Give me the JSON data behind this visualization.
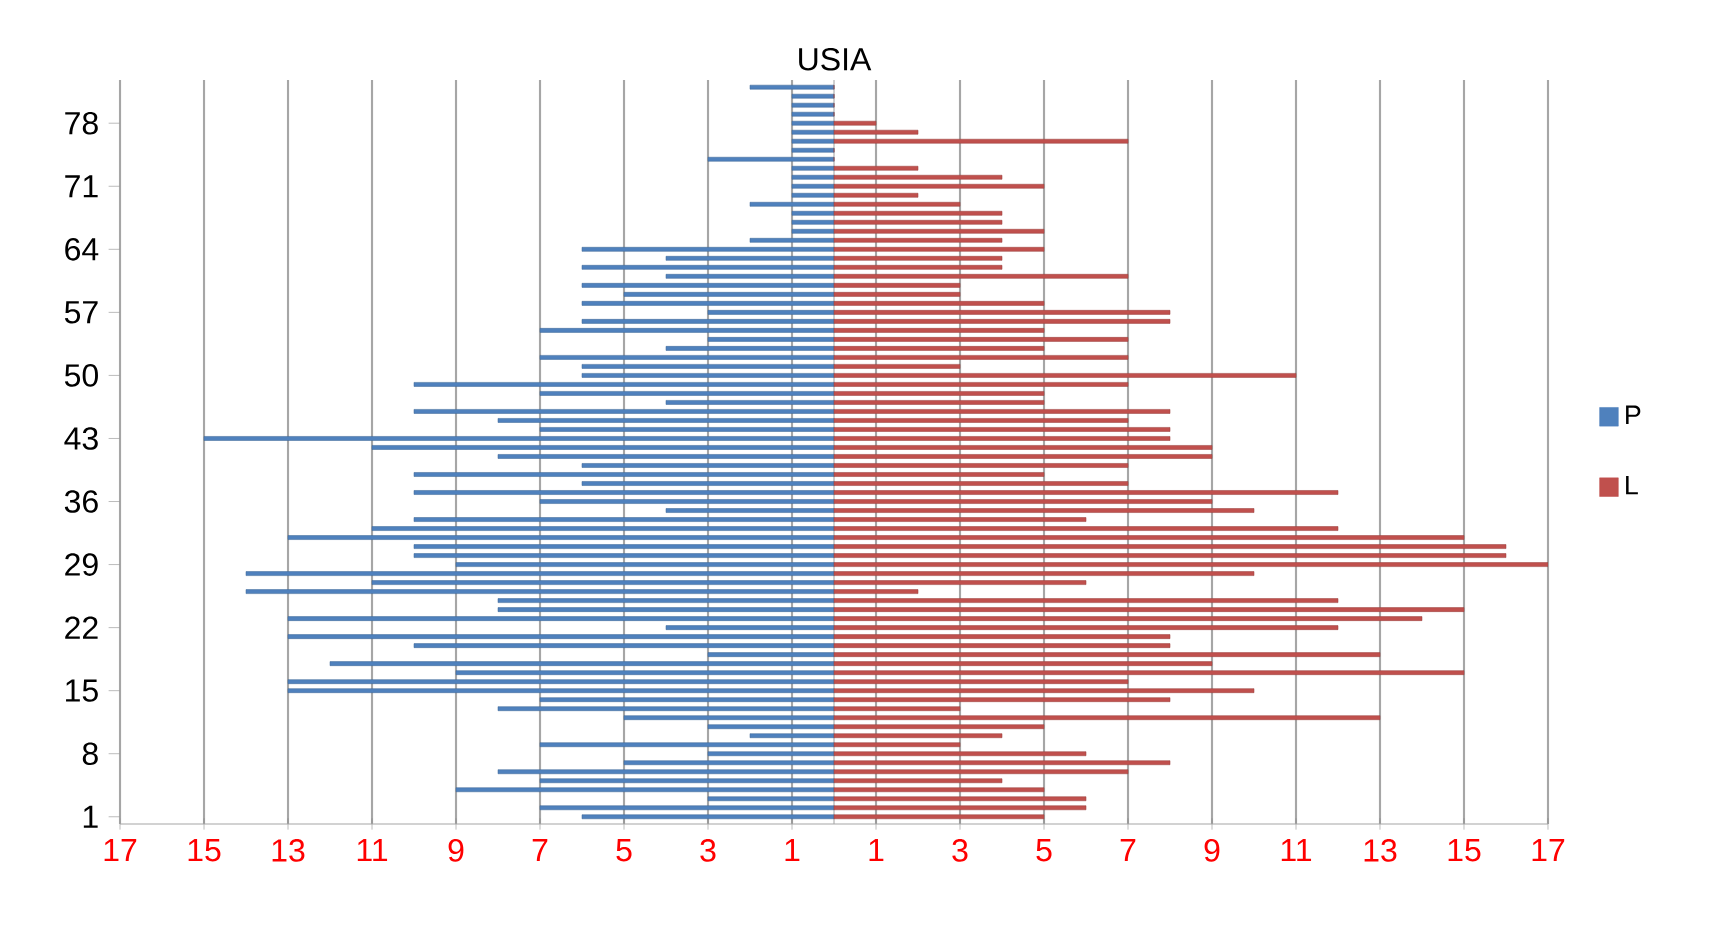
{
  "chart_data": {
    "type": "bar",
    "orientation": "horizontal",
    "stacked": true,
    "ylabel": "USIA",
    "categories": [
      null,
      null,
      null,
      null,
      "78",
      null,
      null,
      null,
      null,
      null,
      null,
      "71",
      null,
      null,
      null,
      null,
      null,
      null,
      "64",
      null,
      null,
      null,
      null,
      null,
      null,
      "57",
      null,
      null,
      null,
      null,
      null,
      null,
      "50",
      null,
      null,
      null,
      null,
      null,
      null,
      "43",
      null,
      null,
      null,
      null,
      null,
      null,
      "36",
      null,
      null,
      null,
      null,
      null,
      null,
      "29",
      null,
      null,
      null,
      null,
      null,
      null,
      "22",
      null,
      null,
      null,
      null,
      null,
      null,
      "15",
      null,
      null,
      null,
      null,
      null,
      null,
      "8",
      null,
      null,
      null,
      null,
      null,
      null,
      "1"
    ],
    "series": [
      {
        "name": "P",
        "color": "#4f81bd",
        "values": [
          -2,
          -1,
          -1,
          -1,
          -1,
          -1,
          -1,
          -1,
          -3,
          -1,
          -1,
          -1,
          -1,
          -2,
          -1,
          -1,
          -1,
          -2,
          -6,
          -4,
          -6,
          -4,
          -6,
          -5,
          -6,
          -3,
          -6,
          -7,
          -3,
          -4,
          -7,
          -6,
          -6,
          -10,
          -7,
          -4,
          -10,
          -8,
          -7,
          -15,
          -11,
          -8,
          -6,
          -10,
          -6,
          -10,
          -7,
          -4,
          -10,
          -11,
          -13,
          -10,
          -10,
          -9,
          -14,
          -11,
          -14,
          -8,
          -8,
          -13,
          -4,
          -13,
          -10,
          -3,
          -12,
          -9,
          -13,
          -13,
          -7,
          -8,
          -5,
          -3,
          -2,
          -7,
          -3,
          -5,
          -8,
          -7,
          -9,
          -3,
          -7,
          -6
        ]
      },
      {
        "name": "L",
        "color": "#c0504d",
        "values": [
          0,
          0,
          0,
          0,
          1,
          2,
          7,
          0,
          0,
          2,
          4,
          5,
          2,
          3,
          4,
          4,
          5,
          4,
          5,
          4,
          4,
          7,
          3,
          3,
          5,
          8,
          8,
          5,
          7,
          5,
          7,
          3,
          11,
          7,
          5,
          5,
          8,
          7,
          8,
          8,
          9,
          9,
          7,
          5,
          7,
          12,
          9,
          10,
          6,
          12,
          15,
          16,
          16,
          17,
          10,
          6,
          2,
          12,
          15,
          14,
          12,
          8,
          8,
          13,
          9,
          15,
          7,
          10,
          8,
          3,
          13,
          5,
          4,
          3,
          6,
          8,
          7,
          4,
          5,
          6,
          6,
          5
        ]
      }
    ],
    "xlim": [
      -17,
      17
    ],
    "xticks": [
      {
        "value": -17,
        "label": "17"
      },
      {
        "value": -15,
        "label": "15"
      },
      {
        "value": -13,
        "label": "13"
      },
      {
        "value": -11,
        "label": "11"
      },
      {
        "value": -9,
        "label": "9"
      },
      {
        "value": -7,
        "label": "7"
      },
      {
        "value": -5,
        "label": "5"
      },
      {
        "value": -3,
        "label": "3"
      },
      {
        "value": -1,
        "label": "1"
      },
      1,
      3,
      5,
      7,
      9,
      11,
      13,
      15,
      17
    ],
    "grid": "x",
    "legend": "right"
  }
}
